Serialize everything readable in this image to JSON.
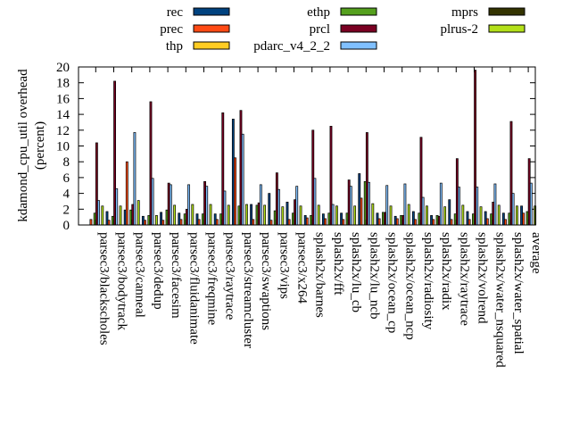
{
  "chart_data": {
    "type": "bar",
    "title": "",
    "xlabel": "",
    "ylabel": "kdamond_cpu_util overhead",
    "ylabel2": "(percent)",
    "ylim": [
      0,
      20
    ],
    "yticks": [
      "0",
      "2",
      "4",
      "6",
      "8",
      "10",
      "12",
      "14",
      "16",
      "18",
      "20"
    ],
    "legend_position": "top",
    "categories": [
      "parsec3/blackscholes",
      "parsec3/bodytrack",
      "parsec3/canneal",
      "parsec3/dedup",
      "parsec3/facesim",
      "parsec3/fluidanimate",
      "parsec3/freqmine",
      "parsec3/raytrace",
      "parsec3/streamcluster",
      "parsec3/swaptions",
      "parsec3/vips",
      "parsec3/x264",
      "splash2x/barnes",
      "splash2x/fft",
      "splash2x/lu_cb",
      "splash2x/lu_ncb",
      "splash2x/ocean_cp",
      "splash2x/ocean_ncp",
      "splash2x/radiosity",
      "splash2x/radix",
      "splash2x/raytrace",
      "splash2x/volrend",
      "splash2x/water_nsquared",
      "splash2x/water_spatial",
      "average"
    ],
    "series": [
      {
        "name": "rec",
        "color": "#00427f",
        "values": [
          0,
          1.7,
          1.9,
          1.1,
          1.6,
          1.5,
          1.4,
          1.4,
          13.4,
          2.6,
          4.0,
          2.9,
          1.2,
          1.4,
          1.5,
          6.5,
          1.5,
          1.1,
          1.7,
          1.2,
          3.2,
          1.7,
          1.7,
          1.5,
          2.4
        ]
      },
      {
        "name": "prec",
        "color": "#ff4a14",
        "values": [
          0.7,
          0.6,
          8.0,
          0.6,
          0.6,
          0.7,
          0.7,
          0.7,
          8.5,
          0.7,
          0.6,
          0.7,
          0.9,
          0.8,
          0.7,
          3.4,
          0.8,
          0.8,
          0.7,
          0.7,
          0.7,
          0.7,
          0.8,
          0.7,
          1.5
        ]
      },
      {
        "name": "thp",
        "color": "#ffcc22",
        "values": [
          0,
          0,
          0,
          0,
          0,
          0,
          0,
          0,
          0,
          0,
          0,
          0,
          0,
          0,
          0,
          0,
          0,
          0,
          0,
          0,
          0,
          0,
          0,
          0,
          0
        ]
      },
      {
        "name": "ethp",
        "color": "#55a01e",
        "values": [
          1.5,
          1.1,
          1.9,
          1.2,
          1.9,
          1.4,
          1.4,
          1.4,
          2.4,
          2.5,
          1.8,
          1.5,
          1.2,
          1.5,
          1.5,
          5.5,
          1.6,
          1.2,
          1.5,
          1.2,
          1.4,
          1.4,
          1.4,
          1.5,
          1.7
        ]
      },
      {
        "name": "prcl",
        "color": "#7a0022",
        "values": [
          10.4,
          18.2,
          2.6,
          15.6,
          5.3,
          2.0,
          5.5,
          14.2,
          14.5,
          2.8,
          6.6,
          3.2,
          12.0,
          12.5,
          5.7,
          11.7,
          1.6,
          1.2,
          11.1,
          1.1,
          8.4,
          19.6,
          2.9,
          13.1,
          8.4
        ]
      },
      {
        "name": "pdarc_v4_2_2",
        "color": "#80c0ff",
        "values": [
          3.1,
          4.6,
          11.7,
          5.9,
          5.1,
          5.1,
          4.9,
          4.3,
          11.5,
          5.1,
          4.5,
          4.9,
          5.9,
          2.6,
          4.9,
          5.4,
          5.0,
          5.2,
          3.5,
          5.3,
          4.8,
          4.8,
          5.2,
          4.0,
          5.3
        ]
      },
      {
        "name": "mprs",
        "color": "#333300",
        "values": [
          0,
          0,
          0,
          0,
          0,
          0,
          0,
          0,
          0,
          0,
          0,
          0,
          0,
          0,
          0,
          0,
          0,
          0,
          0,
          0,
          0,
          0,
          0,
          0,
          0
        ]
      },
      {
        "name": "plrus-2",
        "color": "#b3e019",
        "values": [
          2.4,
          2.4,
          3.1,
          1.2,
          2.5,
          2.6,
          2.6,
          2.5,
          2.6,
          2.5,
          2.3,
          2.4,
          2.5,
          2.4,
          2.4,
          2.7,
          2.4,
          2.6,
          2.4,
          2.3,
          2.5,
          2.3,
          2.5,
          2.4,
          2.4
        ]
      }
    ]
  }
}
